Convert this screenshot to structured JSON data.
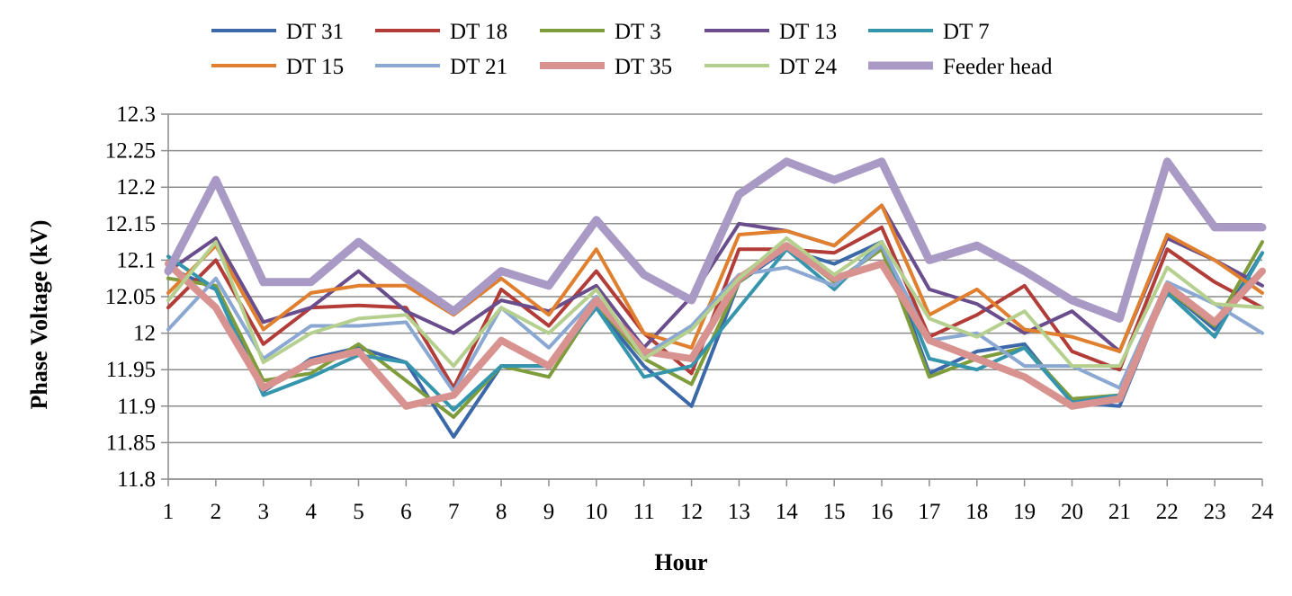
{
  "chart_data": {
    "type": "line",
    "title": "",
    "xlabel": "Hour",
    "ylabel": "Phase Voltage (kV)",
    "ylim": [
      11.8,
      12.3
    ],
    "ytick_step": 0.05,
    "yticks": [
      "11.8",
      "11.85",
      "11.9",
      "11.95",
      "12",
      "12.05",
      "12.1",
      "12.15",
      "12.2",
      "12.25",
      "12.3"
    ],
    "x": [
      1,
      2,
      3,
      4,
      5,
      6,
      7,
      8,
      9,
      10,
      11,
      12,
      13,
      14,
      15,
      16,
      17,
      18,
      19,
      20,
      21,
      22,
      23,
      24
    ],
    "grid": "horizontal",
    "legend_position": "top",
    "series": [
      {
        "name": "DT 31",
        "color": "#3b68a8",
        "width": 4,
        "values": [
          12.09,
          12.06,
          11.92,
          11.965,
          11.98,
          11.96,
          11.858,
          11.955,
          11.955,
          12.035,
          11.955,
          11.9,
          12.07,
          12.115,
          12.095,
          12.125,
          11.945,
          11.975,
          11.985,
          11.905,
          11.9,
          12.06,
          12.005,
          12.11
        ]
      },
      {
        "name": "DT 18",
        "color": "#b23c38",
        "width": 4,
        "values": [
          12.035,
          12.1,
          11.985,
          12.035,
          12.038,
          12.035,
          11.925,
          12.06,
          12.01,
          12.085,
          12,
          11.945,
          12.115,
          12.115,
          12.11,
          12.145,
          11.995,
          12.025,
          12.065,
          11.975,
          11.95,
          12.115,
          12.07,
          12.035
        ]
      },
      {
        "name": "DT 3",
        "color": "#7f9c3c",
        "width": 4,
        "values": [
          12.075,
          12.065,
          11.935,
          11.945,
          11.985,
          11.935,
          11.885,
          11.955,
          11.94,
          12.04,
          11.965,
          11.93,
          12.07,
          12.12,
          12.07,
          12.115,
          11.94,
          11.965,
          11.98,
          11.91,
          11.915,
          12.06,
          12.01,
          12.125
        ]
      },
      {
        "name": "DT 13",
        "color": "#6a4d8c",
        "width": 4,
        "values": [
          12.085,
          12.13,
          12.015,
          12.035,
          12.085,
          12.03,
          12,
          12.045,
          12.03,
          12.065,
          11.98,
          12.05,
          12.15,
          12.14,
          12.12,
          12.175,
          12.06,
          12.04,
          12,
          12.03,
          11.975,
          12.13,
          12.1,
          12.065
        ]
      },
      {
        "name": "DT 7",
        "color": "#3595ad",
        "width": 4,
        "values": [
          12.105,
          12.06,
          11.915,
          11.94,
          11.97,
          11.96,
          11.895,
          11.955,
          11.955,
          12.035,
          11.94,
          11.955,
          12.035,
          12.115,
          12.06,
          12.125,
          11.965,
          11.95,
          11.98,
          11.905,
          11.915,
          12.055,
          11.995,
          12.11
        ]
      },
      {
        "name": "DT 15",
        "color": "#e07f2e",
        "width": 4,
        "values": [
          12.055,
          12.12,
          12.005,
          12.055,
          12.065,
          12.065,
          12.025,
          12.075,
          12.025,
          12.115,
          12,
          11.98,
          12.135,
          12.14,
          12.12,
          12.175,
          12.025,
          12.06,
          12.005,
          11.995,
          11.975,
          12.135,
          12.1,
          12.055
        ]
      },
      {
        "name": "DT 21",
        "color": "#8aa8d2",
        "width": 4,
        "values": [
          12.005,
          12.075,
          11.965,
          12.01,
          12.01,
          12.015,
          11.92,
          12.035,
          11.98,
          12.05,
          11.97,
          12.01,
          12.08,
          12.09,
          12.065,
          12.12,
          11.99,
          12,
          11.955,
          11.955,
          11.925,
          12.07,
          12.04,
          12
        ]
      },
      {
        "name": "DT 35",
        "color": "#d89390",
        "width": 8,
        "values": [
          12.095,
          12.035,
          11.925,
          11.96,
          11.975,
          11.9,
          11.915,
          11.99,
          11.955,
          12.045,
          11.975,
          11.965,
          12.075,
          12.12,
          12.075,
          12.095,
          11.99,
          11.965,
          11.94,
          11.9,
          11.91,
          12.065,
          12.015,
          12.085
        ]
      },
      {
        "name": "DT 24",
        "color": "#b5d08e",
        "width": 4,
        "values": [
          12.045,
          12.125,
          11.96,
          12,
          12.02,
          12.025,
          11.955,
          12.035,
          12,
          12.06,
          11.965,
          12.005,
          12.075,
          12.13,
          12.08,
          12.125,
          12.02,
          11.995,
          12.03,
          11.955,
          11.955,
          12.09,
          12.04,
          12.035
        ]
      },
      {
        "name": "Feeder head",
        "color": "#a999c5",
        "width": 9,
        "values": [
          12.085,
          12.21,
          12.07,
          12.07,
          12.125,
          12.075,
          12.03,
          12.085,
          12.065,
          12.155,
          12.08,
          12.045,
          12.19,
          12.235,
          12.21,
          12.235,
          12.1,
          12.12,
          12.085,
          12.045,
          12.02,
          12.235,
          12.145,
          12.145
        ]
      }
    ]
  }
}
